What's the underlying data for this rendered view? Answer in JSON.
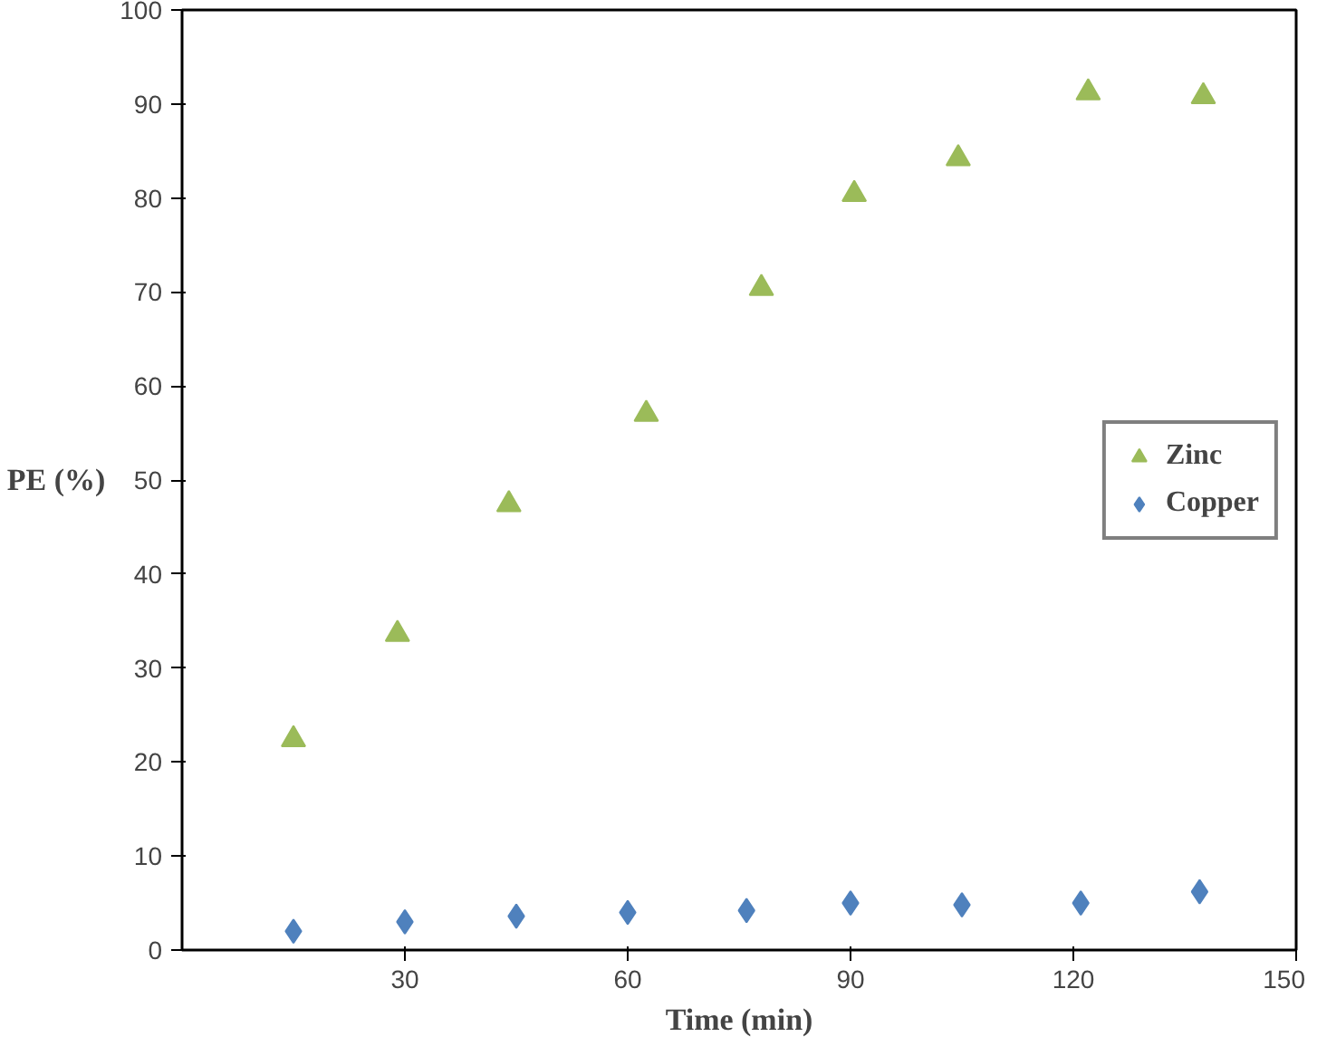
{
  "chart_data": {
    "type": "scatter",
    "xlabel": "Time (min)",
    "ylabel": "PE (%)",
    "xlim": [
      0,
      150
    ],
    "ylim": [
      0,
      100
    ],
    "xticks": [
      30,
      60,
      90,
      120,
      150
    ],
    "yticks": [
      0,
      10,
      20,
      30,
      40,
      50,
      60,
      70,
      80,
      90,
      100
    ],
    "grid": false,
    "legend": "right",
    "series": [
      {
        "name": "Zinc",
        "color": "#9bbb59",
        "marker": "triangle",
        "x": [
          15,
          29,
          44,
          62.5,
          78,
          90.5,
          104.5,
          122,
          137.5
        ],
        "values": [
          22.4,
          33.6,
          47.4,
          57,
          70.4,
          80.4,
          84.2,
          91.2,
          90.8
        ]
      },
      {
        "name": "Copper",
        "color": "#4f81bd",
        "marker": "diamond",
        "x": [
          15,
          30,
          45,
          60,
          76,
          90,
          105,
          121,
          137
        ],
        "values": [
          2,
          3,
          3.6,
          4,
          4.2,
          5,
          4.8,
          5,
          6.2
        ]
      }
    ]
  }
}
